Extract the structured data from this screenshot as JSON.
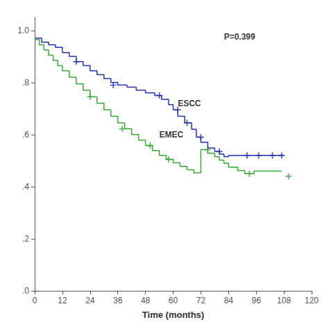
{
  "chart_data": {
    "type": "line",
    "xlabel": "Time (months)",
    "xlim": [
      0,
      120
    ],
    "ylim": [
      0.0,
      1.05
    ],
    "xticks": [
      0,
      12,
      24,
      36,
      48,
      60,
      72,
      84,
      96,
      108,
      120
    ],
    "yticks": [
      {
        "value": 0.0,
        "label": ".0"
      },
      {
        "value": 0.2,
        "label": ".2"
      },
      {
        "value": 0.4,
        "label": ".4"
      },
      {
        "value": 0.6,
        "label": ".6"
      },
      {
        "value": 0.8,
        "label": ".8"
      },
      {
        "value": 1.0,
        "label": "1.0"
      }
    ],
    "series": [
      {
        "type": "line",
        "color": "#2233bb",
        "x": [
          0,
          3,
          3,
          6,
          6,
          9,
          9,
          12,
          12,
          15,
          15,
          18,
          18,
          21,
          21,
          24,
          24,
          27,
          27,
          30,
          30,
          33,
          33,
          36,
          36,
          40,
          40,
          44,
          44,
          48,
          48,
          52,
          52,
          55,
          55,
          58,
          58,
          60,
          60,
          62,
          62,
          65,
          65,
          68,
          68,
          70,
          70,
          72,
          72,
          75,
          75,
          78,
          78,
          80,
          80,
          82,
          82,
          84,
          84,
          88,
          88,
          92,
          92,
          96,
          96,
          108
        ],
        "values": [
          0.97,
          0.97,
          0.955,
          0.955,
          0.945,
          0.945,
          0.935,
          0.935,
          0.915,
          0.915,
          0.9,
          0.9,
          0.88,
          0.88,
          0.865,
          0.865,
          0.845,
          0.845,
          0.83,
          0.83,
          0.815,
          0.815,
          0.8,
          0.8,
          0.79,
          0.79,
          0.782,
          0.782,
          0.77,
          0.77,
          0.76,
          0.76,
          0.75,
          0.75,
          0.735,
          0.735,
          0.715,
          0.715,
          0.695,
          0.695,
          0.67,
          0.67,
          0.645,
          0.645,
          0.62,
          0.62,
          0.59,
          0.59,
          0.57,
          0.57,
          0.548,
          0.548,
          0.535,
          0.535,
          0.525,
          0.525,
          0.515,
          0.515,
          0.52,
          0.52,
          0.52,
          0.52,
          0.52,
          0.52,
          0.52,
          0.52
        ]
      },
      {
        "type": "line",
        "color": "#33aa33",
        "x": [
          0,
          2,
          2,
          4,
          4,
          6,
          6,
          8,
          8,
          10,
          10,
          12,
          12,
          15,
          15,
          18,
          18,
          21,
          21,
          24,
          24,
          27,
          27,
          30,
          30,
          33,
          33,
          36,
          36,
          39,
          39,
          42,
          42,
          45,
          45,
          48,
          48,
          51,
          51,
          54,
          54,
          57,
          57,
          60,
          60,
          63,
          63,
          66,
          66,
          69,
          69,
          72,
          72,
          75,
          75,
          78,
          78,
          80,
          80,
          82,
          82,
          84,
          84,
          88,
          88,
          91,
          91,
          95,
          95,
          99,
          99,
          107
        ],
        "values": [
          0.965,
          0.965,
          0.945,
          0.945,
          0.925,
          0.925,
          0.905,
          0.905,
          0.885,
          0.885,
          0.865,
          0.865,
          0.845,
          0.845,
          0.82,
          0.82,
          0.795,
          0.795,
          0.77,
          0.77,
          0.745,
          0.745,
          0.72,
          0.72,
          0.695,
          0.695,
          0.67,
          0.67,
          0.645,
          0.645,
          0.622,
          0.622,
          0.6,
          0.6,
          0.578,
          0.578,
          0.558,
          0.558,
          0.538,
          0.538,
          0.52,
          0.52,
          0.505,
          0.505,
          0.492,
          0.492,
          0.478,
          0.478,
          0.465,
          0.465,
          0.453,
          0.453,
          0.542,
          0.542,
          0.528,
          0.528,
          0.515,
          0.515,
          0.502,
          0.502,
          0.49,
          0.49,
          0.475,
          0.475,
          0.462,
          0.462,
          0.45,
          0.45,
          0.46,
          0.46,
          0.46,
          0.46
        ]
      },
      {
        "type": "scatter",
        "marker": "plus",
        "color": "#2233bb",
        "x": [
          18,
          34,
          54,
          62,
          66,
          72,
          80,
          92,
          97,
          103,
          107
        ],
        "values": [
          0.88,
          0.79,
          0.75,
          0.695,
          0.645,
          0.59,
          0.535,
          0.52,
          0.52,
          0.52,
          0.52
        ]
      },
      {
        "type": "scatter",
        "marker": "plus",
        "color": "#33aa33",
        "x": [
          24,
          38,
          50,
          58,
          75,
          93,
          110
        ],
        "values": [
          0.745,
          0.622,
          0.558,
          0.505,
          0.542,
          0.45,
          0.44
        ]
      }
    ],
    "annotations": [
      {
        "text": "ESCC",
        "x": 62,
        "y": 0.72
      },
      {
        "text": "EMEC",
        "x": 54,
        "y": 0.6
      },
      {
        "text": "P=0.399",
        "x": 82,
        "y": 0.975
      }
    ]
  }
}
